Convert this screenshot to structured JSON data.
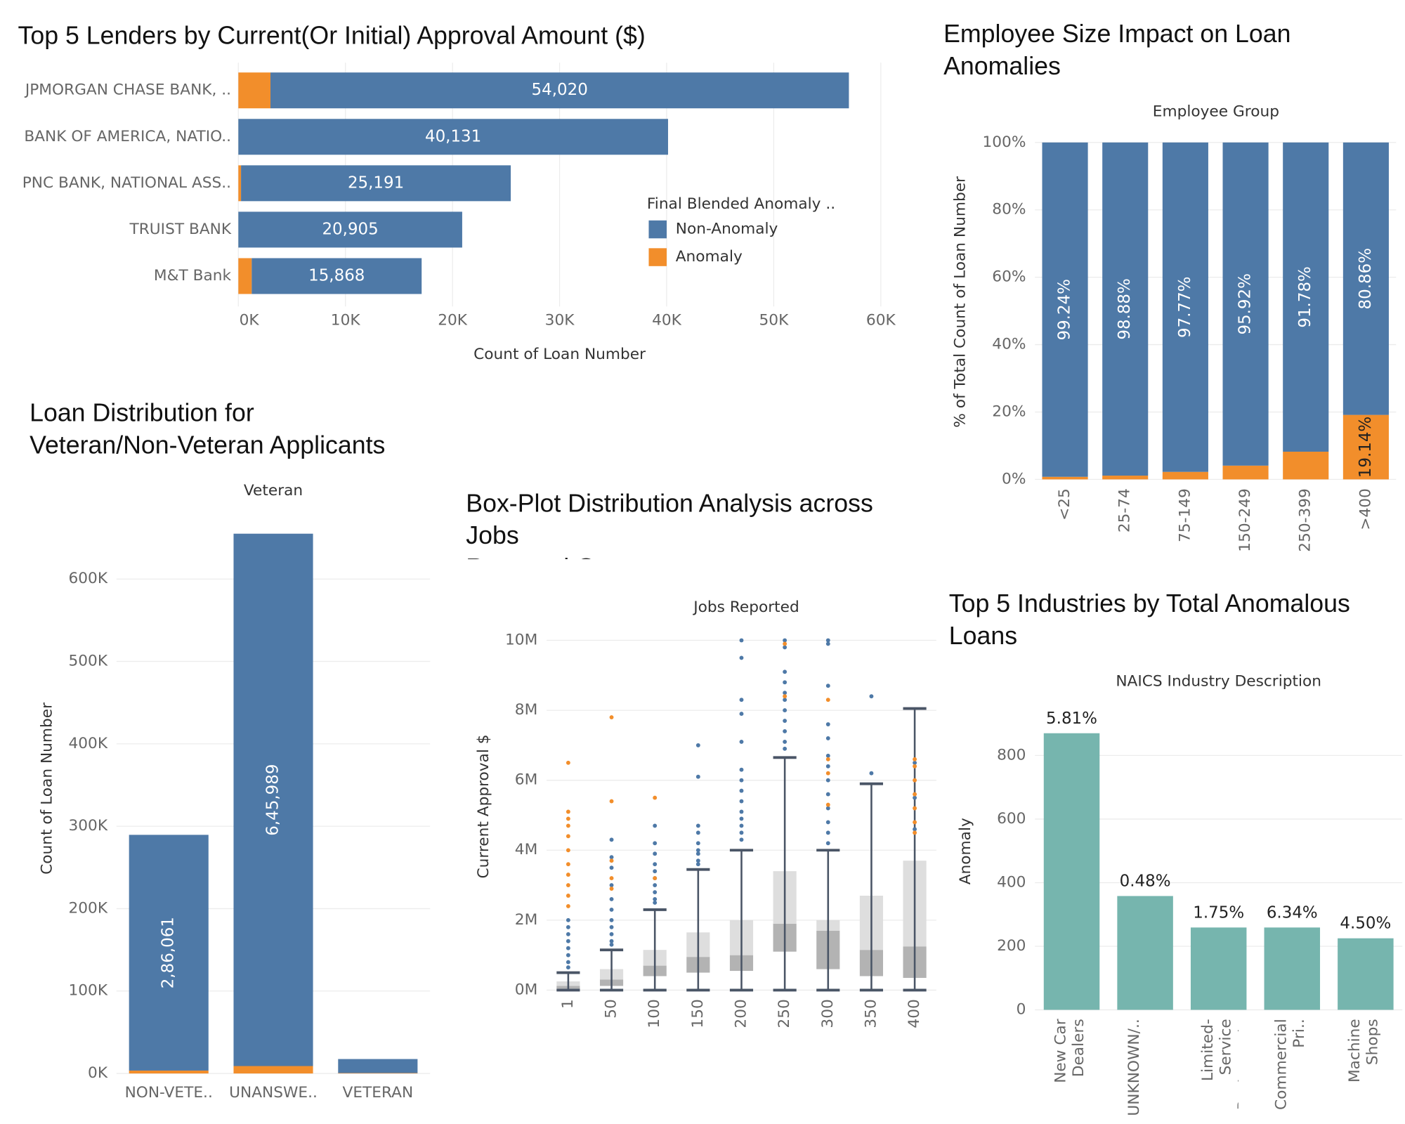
{
  "chart_data": [
    {
      "type": "hbar",
      "stacked": true,
      "title": "Top 5 Lenders by Current(Or Initial) Approval Amount ($)",
      "categories": [
        "JPMORGAN CHASE BANK, ..",
        "BANK OF AMERICA, NATIO..",
        "PNC BANK, NATIONAL ASS..",
        "TRUIST BANK",
        "M&T Bank"
      ],
      "series": [
        {
          "name": "Non-Anomaly",
          "color": "#4e79a7",
          "values": [
            54020,
            40131,
            25191,
            20905,
            15868
          ],
          "value_labels": [
            "54,020",
            "40,131",
            "25,191",
            "20,905",
            "15,868"
          ]
        },
        {
          "name": "Anomaly",
          "color": "#f28e2b",
          "values": [
            3000,
            0,
            250,
            0,
            1250
          ]
        }
      ],
      "xlim": [
        0,
        60000
      ],
      "xticks": [
        {
          "value": 0,
          "label": "0K"
        },
        {
          "value": 10000,
          "label": "10K"
        },
        {
          "value": 20000,
          "label": "20K"
        },
        {
          "value": 30000,
          "label": "30K"
        },
        {
          "value": 40000,
          "label": "40K"
        },
        {
          "value": 50000,
          "label": "50K"
        },
        {
          "value": 60000,
          "label": "60K"
        }
      ],
      "x_label": "Count of Loan Number",
      "legend": true,
      "legend_title": "Final Blended Anomaly ..",
      "grid": true
    },
    {
      "type": "bar",
      "stacked": true,
      "title": "Employee Size Impact on Loan Anomalies",
      "top_label": "Employee Group",
      "y_label": "% of Total Count of Loan Number",
      "categories": [
        "<25",
        "25-74",
        "75-149",
        "150-249",
        "250-399",
        ">400"
      ],
      "series": [
        {
          "color": "#4e79a7",
          "values": [
            99.24,
            98.88,
            97.77,
            95.92,
            91.78,
            80.86
          ],
          "value_labels": [
            "99.24%",
            "98.88%",
            "97.77%",
            "95.92%",
            "91.78%",
            "80.86%"
          ]
        },
        {
          "color": "#f28e2b",
          "values": [
            0.76,
            1.12,
            2.23,
            4.08,
            8.22,
            19.14
          ],
          "value_labels": [
            null,
            null,
            null,
            null,
            null,
            "19.14%"
          ]
        }
      ],
      "ylim": [
        0,
        100
      ],
      "yticks": [
        {
          "value": 0,
          "label": "0%"
        },
        {
          "value": 20,
          "label": "20%"
        },
        {
          "value": 40,
          "label": "40%"
        },
        {
          "value": 60,
          "label": "60%"
        },
        {
          "value": 80,
          "label": "80%"
        },
        {
          "value": 100,
          "label": "100%"
        }
      ],
      "grid": true
    },
    {
      "type": "bar",
      "stacked": true,
      "title": "Loan Distribution for\nVeteran/Non-Veteran Applicants",
      "top_label": "Veteran",
      "y_label": "Count of Loan Number",
      "categories": [
        "NON-VETE..",
        "UNANSWE..",
        "VETERAN"
      ],
      "series": [
        {
          "color": "#4e79a7",
          "values": [
            286061,
            645989,
            17000
          ],
          "value_labels": [
            "2,86,061",
            "6,45,989",
            null
          ]
        },
        {
          "color": "#f28e2b",
          "values": [
            3500,
            9000,
            500
          ]
        }
      ],
      "ylim": [
        0,
        660000
      ],
      "yticks": [
        {
          "value": 0,
          "label": "0K"
        },
        {
          "value": 100000,
          "label": "100K"
        },
        {
          "value": 200000,
          "label": "200K"
        },
        {
          "value": 300000,
          "label": "300K"
        },
        {
          "value": 400000,
          "label": "400K"
        },
        {
          "value": 500000,
          "label": "500K"
        },
        {
          "value": 600000,
          "label": "600K"
        }
      ],
      "grid": true
    },
    {
      "type": "boxplot",
      "title": "Box-Plot Distribution Analysis across Jobs\nReported Groups",
      "top_label": "Jobs Reported",
      "y_label": "Current Approval $",
      "categories": [
        "1",
        "50",
        "100",
        "150",
        "200",
        "250",
        "300",
        "350",
        "400"
      ],
      "boxes": [
        {
          "low": 0,
          "q1": 0.04,
          "median": 0.12,
          "q3": 0.25,
          "high": 0.5
        },
        {
          "low": 0,
          "q1": 0.12,
          "median": 0.3,
          "q3": 0.6,
          "high": 1.15
        },
        {
          "low": 0,
          "q1": 0.4,
          "median": 0.7,
          "q3": 1.15,
          "high": 2.3
        },
        {
          "low": 0,
          "q1": 0.5,
          "median": 0.95,
          "q3": 1.65,
          "high": 3.45
        },
        {
          "low": 0,
          "q1": 0.55,
          "median": 1.0,
          "q3": 2.0,
          "high": 4.0
        },
        {
          "low": 0,
          "q1": 1.1,
          "median": 1.9,
          "q3": 3.4,
          "high": 6.65
        },
        {
          "low": 0,
          "q1": 0.6,
          "median": 1.7,
          "q3": 2.0,
          "high": 4.0
        },
        {
          "low": 0,
          "q1": 0.4,
          "median": 1.15,
          "q3": 2.7,
          "high": 5.9
        },
        {
          "low": 0,
          "q1": 0.35,
          "median": 1.25,
          "q3": 3.7,
          "high": 8.05
        }
      ],
      "series": [
        {
          "color": "#4e79a7",
          "points": [
            [
              2.0,
              1.8,
              1.6,
              1.4,
              1.2,
              1.0,
              0.8,
              0.65
            ],
            [
              4.3,
              3.8,
              3.5,
              3.0,
              2.6,
              2.3,
              2.0,
              1.8,
              1.6,
              1.4,
              1.3
            ],
            [
              4.7,
              4.2,
              3.9,
              3.6,
              3.4,
              3.2,
              3.0,
              2.8,
              2.6,
              2.5
            ],
            [
              7.0,
              6.1,
              4.7,
              4.5,
              4.2,
              4.0,
              3.9,
              3.7,
              3.6
            ],
            [
              10.0,
              9.5,
              8.3,
              7.9,
              7.1,
              6.3,
              6.0,
              5.7,
              5.4,
              5.1,
              4.9,
              4.7,
              4.5,
              4.3
            ],
            [
              10.0,
              9.8,
              9.1,
              8.8,
              8.5,
              8.3,
              8.0,
              7.7,
              7.4,
              7.1,
              6.9
            ],
            [
              10.0,
              9.9,
              8.7,
              7.6,
              7.2,
              6.7,
              6.4,
              6.0,
              5.6,
              5.2,
              4.8,
              4.5,
              4.2
            ],
            [
              8.4,
              6.2
            ],
            [
              6.5,
              5.5,
              4.6
            ]
          ]
        },
        {
          "color": "#f28e2b",
          "points": [
            [
              6.5,
              5.1,
              4.9,
              4.7,
              4.4,
              4.0,
              3.6,
              3.3,
              3.0,
              2.7,
              2.4
            ],
            [
              7.8,
              5.4,
              3.7,
              3.2,
              2.9
            ],
            [
              5.5,
              3.2
            ],
            [],
            [],
            [
              9.9,
              8.4
            ],
            [
              8.3,
              6.6,
              6.2,
              5.3
            ],
            [],
            [
              6.6,
              6.4,
              6.0,
              5.6,
              5.2,
              4.8,
              4.5
            ]
          ]
        }
      ],
      "ylim": [
        0,
        10.4
      ],
      "yticks": [
        {
          "value": 0,
          "label": "0M"
        },
        {
          "value": 2,
          "label": "2M"
        },
        {
          "value": 4,
          "label": "4M"
        },
        {
          "value": 6,
          "label": "6M"
        },
        {
          "value": 8,
          "label": "8M"
        },
        {
          "value": 10,
          "label": "10M"
        }
      ],
      "grid": true
    },
    {
      "type": "bar",
      "title": "Top 5 Industries by Total Anomalous\nLoans",
      "top_label": "NAICS Industry Description",
      "y_label": "Anomaly",
      "categories": [
        "New Car Dealers",
        "UNKNOWN/..",
        "Limited-Service Restaurants",
        "Commercial Pri..",
        "Machine Shops"
      ],
      "values": [
        870,
        358,
        259,
        259,
        225
      ],
      "color": "#76b5ae",
      "bar_labels": [
        "5.81%",
        "0.48%",
        "1.75%",
        "6.34%",
        "4.50%"
      ],
      "ylim": [
        0,
        930
      ],
      "yticks": [
        0,
        200,
        400,
        600,
        800
      ],
      "grid": true
    }
  ]
}
